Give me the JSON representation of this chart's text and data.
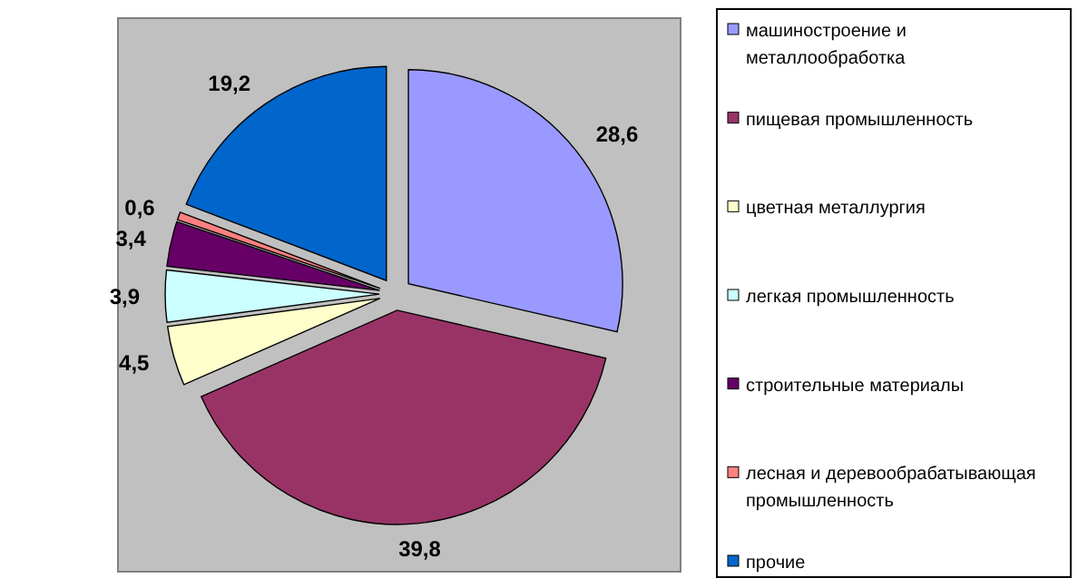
{
  "chart_data": {
    "type": "pie",
    "categories": [
      "машиностроение и металлообработка",
      "пищевая промышленность",
      "цветная металлургия",
      "легкая промышленность",
      "строительные материалы",
      "лесная и деревообрабатывающая промышленность",
      "прочие"
    ],
    "values": [
      28.6,
      39.8,
      4.5,
      3.9,
      3.4,
      0.6,
      19.2
    ],
    "colors": [
      "#9999ff",
      "#993366",
      "#ffffcc",
      "#ccffff",
      "#660066",
      "#ff8080",
      "#0066cc"
    ],
    "value_labels": [
      "28,6",
      "39,8",
      "4,5",
      "3,9",
      "3,4",
      "0,6",
      "19,2"
    ],
    "legend": "right"
  }
}
